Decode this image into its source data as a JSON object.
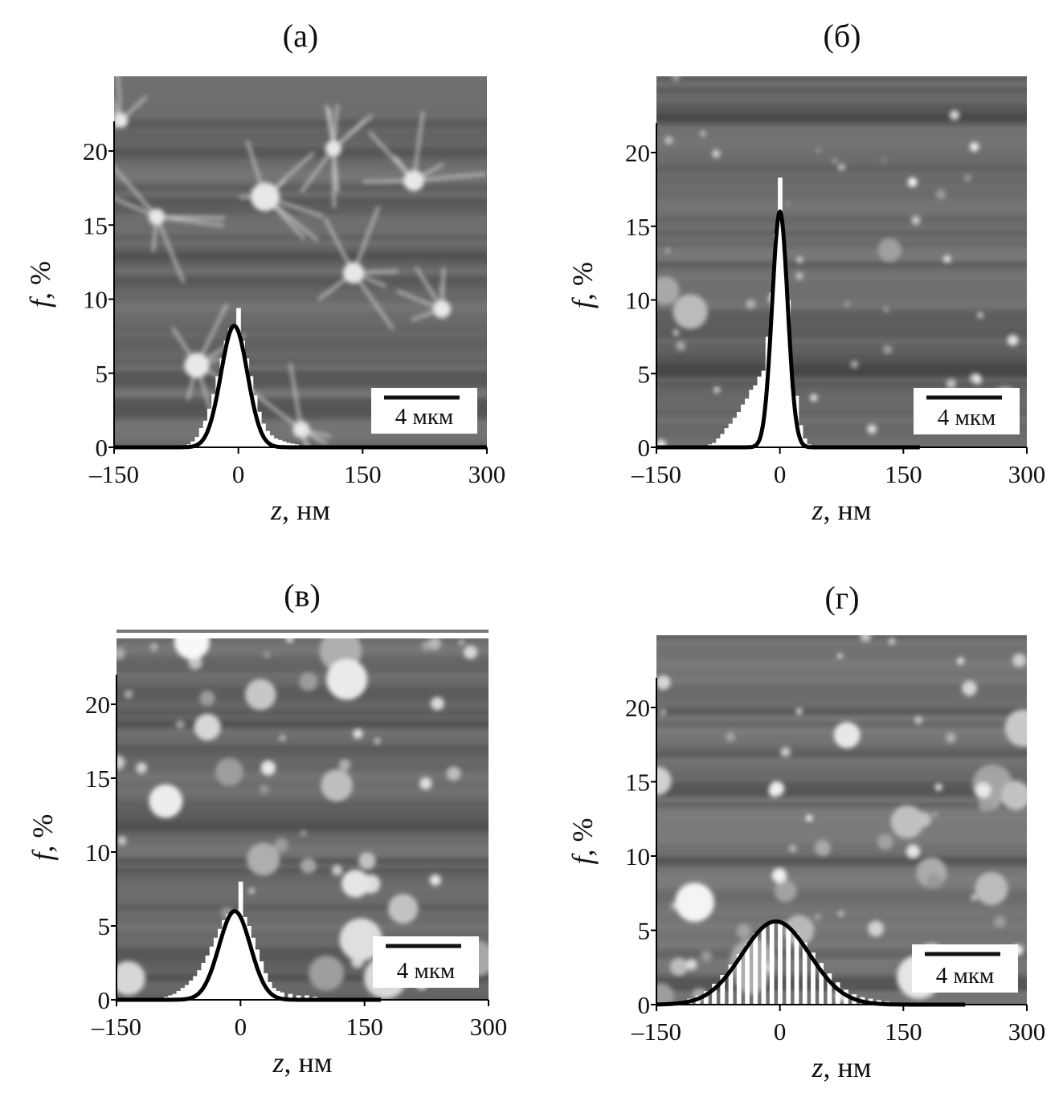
{
  "chart_data": [
    {
      "type": "bar",
      "panel_label": "(а)",
      "xlabel": {
        "var": "z",
        "unit": ", нм"
      },
      "ylabel": {
        "var": "f",
        "unit": ", %"
      },
      "xlim": [
        -150,
        300
      ],
      "ylim": [
        0,
        25
      ],
      "xticks": [
        -150,
        0,
        150,
        300
      ],
      "xtick_labels": [
        "–150",
        "0",
        "150",
        "300"
      ],
      "yticks": [
        0,
        5,
        10,
        15,
        20
      ],
      "ytick_labels": [
        "0",
        "5",
        "10",
        "15",
        "20"
      ],
      "scale_bar": "4 мкм",
      "histogram": {
        "bin_width_nm": 5,
        "z": [
          -65,
          -60,
          -55,
          -50,
          -45,
          -40,
          -35,
          -30,
          -25,
          -20,
          -15,
          -10,
          -5,
          0,
          5,
          10,
          15,
          20,
          25,
          30,
          35,
          40,
          45,
          50,
          55,
          60,
          65,
          70,
          80
        ],
        "f": [
          0.1,
          0.2,
          0.4,
          0.7,
          1.3,
          1.8,
          2.6,
          3.6,
          4.8,
          6.0,
          7.2,
          8.0,
          8.3,
          9.4,
          7.2,
          6.0,
          4.8,
          3.5,
          2.4,
          1.6,
          1.1,
          0.8,
          0.6,
          0.5,
          0.4,
          0.3,
          0.25,
          0.2,
          0.1
        ]
      },
      "fit": {
        "type": "gaussian",
        "peak": 8.2,
        "center": -5,
        "sigma": 16,
        "z_range": [
          -150,
          300
        ]
      },
      "grid": false
    },
    {
      "type": "bar",
      "panel_label": "(б)",
      "xlabel": {
        "var": "z",
        "unit": ", нм"
      },
      "ylabel": {
        "var": "f",
        "unit": ", %"
      },
      "xlim": [
        -150,
        300
      ],
      "ylim": [
        0,
        25
      ],
      "xticks": [
        -150,
        0,
        150,
        300
      ],
      "xtick_labels": [
        "–150",
        "0",
        "150",
        "300"
      ],
      "yticks": [
        0,
        5,
        10,
        15,
        20
      ],
      "ytick_labels": [
        "0",
        "5",
        "10",
        "15",
        "20"
      ],
      "scale_bar": "4 мкм",
      "histogram": {
        "bin_width_nm": 5,
        "z": [
          -90,
          -85,
          -80,
          -75,
          -70,
          -65,
          -60,
          -55,
          -50,
          -45,
          -40,
          -35,
          -30,
          -25,
          -20,
          -15,
          -10,
          -5,
          0,
          5,
          10,
          15,
          20,
          25,
          30,
          35
        ],
        "f": [
          0.1,
          0.2,
          0.3,
          0.6,
          0.9,
          1.3,
          1.6,
          2.0,
          2.4,
          2.9,
          3.3,
          3.9,
          4.2,
          4.8,
          5.2,
          7.5,
          10.5,
          14.5,
          18.3,
          13.5,
          10.0,
          4.0,
          3.5,
          1.5,
          0.6,
          0.2
        ]
      },
      "fit": {
        "type": "gaussian",
        "peak": 16.0,
        "center": 0,
        "sigma": 9.5,
        "z_range": [
          -150,
          170
        ]
      },
      "grid": false
    },
    {
      "type": "bar",
      "panel_label": "(в)",
      "xlabel": {
        "var": "z",
        "unit": ", нм"
      },
      "ylabel": {
        "var": "f",
        "unit": ", %"
      },
      "xlim": [
        -150,
        300
      ],
      "ylim": [
        0,
        25
      ],
      "xticks": [
        -150,
        0,
        150,
        300
      ],
      "xtick_labels": [
        "–150",
        "0",
        "150",
        "300"
      ],
      "yticks": [
        0,
        5,
        10,
        15,
        20
      ],
      "ytick_labels": [
        "0",
        "5",
        "10",
        "15",
        "20"
      ],
      "scale_bar": "4 мкм",
      "histogram": {
        "bin_width_nm": 5,
        "z": [
          -95,
          -90,
          -85,
          -80,
          -75,
          -70,
          -65,
          -60,
          -55,
          -50,
          -45,
          -40,
          -35,
          -30,
          -25,
          -20,
          -15,
          -10,
          -5,
          0,
          5,
          10,
          15,
          20,
          25,
          30,
          35,
          40,
          45,
          50,
          60,
          70,
          80,
          90,
          100
        ],
        "f": [
          0.1,
          0.2,
          0.3,
          0.4,
          0.6,
          0.8,
          1.0,
          1.3,
          1.6,
          2.0,
          2.5,
          3.0,
          3.6,
          4.2,
          4.8,
          5.4,
          5.8,
          6.0,
          6.1,
          8.0,
          5.6,
          5.0,
          4.2,
          3.4,
          2.6,
          1.8,
          1.2,
          0.8,
          0.6,
          0.5,
          0.4,
          0.3,
          0.3,
          0.2,
          0.1
        ]
      },
      "fit": {
        "type": "gaussian",
        "peak": 6.0,
        "center": -7,
        "sigma": 19,
        "z_range": [
          -150,
          170
        ]
      },
      "grid": false
    },
    {
      "type": "bar",
      "panel_label": "(г)",
      "xlabel": {
        "var": "z",
        "unit": ", нм"
      },
      "ylabel": {
        "var": "f",
        "unit": ", %"
      },
      "xlim": [
        -150,
        300
      ],
      "ylim": [
        0,
        25
      ],
      "xticks": [
        -150,
        0,
        150,
        300
      ],
      "xtick_labels": [
        "–150",
        "0",
        "150",
        "300"
      ],
      "yticks": [
        0,
        5,
        10,
        15,
        20
      ],
      "ytick_labels": [
        "0",
        "5",
        "10",
        "15",
        "20"
      ],
      "scale_bar": "4 мкм",
      "histogram": {
        "bin_width_nm": 5,
        "z": [
          -120,
          -110,
          -100,
          -90,
          -80,
          -70,
          -60,
          -50,
          -40,
          -30,
          -20,
          -10,
          0,
          10,
          20,
          30,
          40,
          50,
          60,
          70,
          80,
          90,
          100,
          110,
          120,
          130,
          140
        ],
        "f": [
          0.2,
          0.4,
          0.6,
          0.9,
          1.4,
          2.0,
          2.7,
          3.4,
          4.1,
          4.8,
          5.3,
          5.6,
          5.6,
          5.3,
          4.8,
          4.2,
          3.5,
          2.8,
          2.1,
          1.5,
          1.0,
          0.7,
          0.5,
          0.4,
          0.3,
          0.2,
          0.1
        ]
      },
      "fit": {
        "type": "gaussian",
        "peak": 5.6,
        "center": -5,
        "sigma": 41,
        "z_range": [
          -150,
          225
        ]
      },
      "grid": false
    }
  ]
}
